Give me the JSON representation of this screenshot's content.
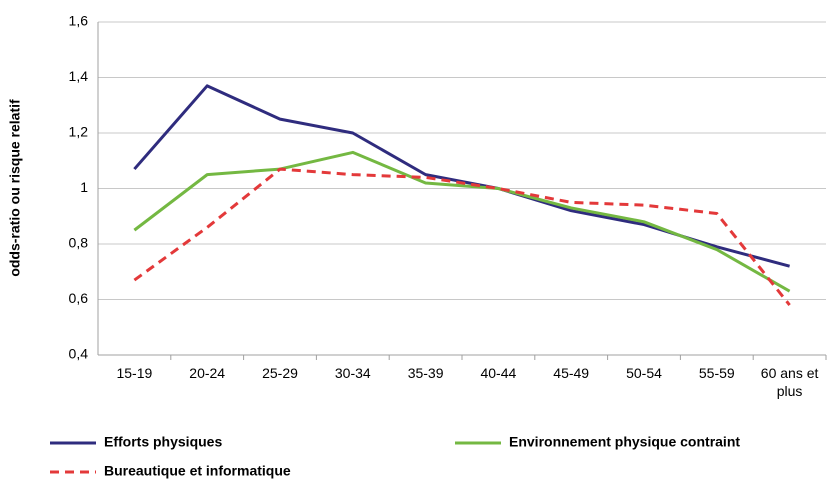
{
  "chart_data": {
    "type": "line",
    "y_label": "odds-ratio ou risque relatif",
    "categories": [
      "15-19",
      "20-24",
      "25-29",
      "30-34",
      "35-39",
      "40-44",
      "45-49",
      "50-54",
      "55-59",
      "60 ans et plus"
    ],
    "series": [
      {
        "name": "Efforts physiques",
        "color": "#2f2c7e",
        "dash": false,
        "values": [
          1.07,
          1.37,
          1.25,
          1.2,
          1.05,
          1.0,
          0.92,
          0.87,
          0.79,
          0.72
        ]
      },
      {
        "name": "Environnement physique contraint",
        "color": "#74b842",
        "dash": false,
        "values": [
          0.85,
          1.05,
          1.07,
          1.13,
          1.02,
          1.0,
          0.93,
          0.88,
          0.78,
          0.63
        ]
      },
      {
        "name": "Bureautique et informatique",
        "color": "#e3393a",
        "dash": true,
        "values": [
          0.67,
          0.86,
          1.07,
          1.05,
          1.04,
          1.0,
          0.95,
          0.94,
          0.91,
          0.58
        ]
      }
    ],
    "ylim": [
      0.4,
      1.6
    ],
    "yticks": [
      {
        "value": 0.4,
        "label": "0,4"
      },
      {
        "value": 0.6,
        "label": "0,6"
      },
      {
        "value": 0.8,
        "label": "0,8"
      },
      1,
      {
        "value": 1.2,
        "label": "1,2"
      },
      {
        "value": 1.4,
        "label": "1,4"
      },
      {
        "value": 1.6,
        "label": "1,6"
      }
    ],
    "grid": true,
    "legend": "bottom"
  }
}
